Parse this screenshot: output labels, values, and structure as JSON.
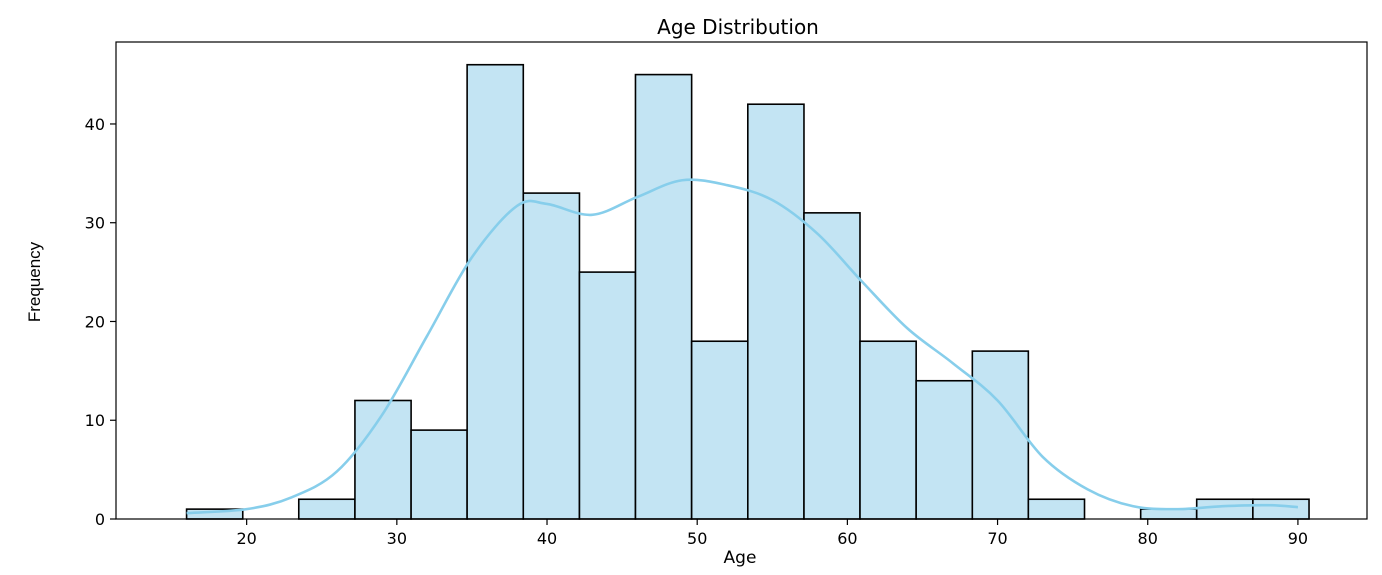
{
  "chart_data": {
    "type": "bar",
    "title": "Age Distribution",
    "xlabel": "Age",
    "ylabel": "Frequency",
    "xlim": [
      11.3,
      94.6
    ],
    "ylim": [
      0,
      48.3
    ],
    "xticks": [
      20,
      30,
      40,
      50,
      60,
      70,
      80,
      90
    ],
    "yticks": [
      0,
      10,
      20,
      30,
      40
    ],
    "bin_edges": [
      16,
      19.74,
      23.47,
      27.21,
      30.95,
      34.68,
      38.42,
      42.16,
      45.89,
      49.63,
      53.37,
      57.11,
      60.84,
      64.58,
      68.32,
      72.05,
      75.79,
      79.53,
      83.26,
      87,
      90.74
    ],
    "counts": [
      1,
      0,
      2,
      12,
      9,
      46,
      33,
      25,
      45,
      18,
      42,
      31,
      18,
      14,
      17,
      2,
      0,
      1,
      2,
      2
    ],
    "kde": {
      "x": [
        16,
        20,
        23,
        26,
        29,
        32,
        35,
        38,
        40,
        43,
        46,
        49,
        52,
        55,
        58,
        61,
        64,
        67,
        70,
        73,
        76,
        79,
        82,
        85,
        88,
        90
      ],
      "y": [
        0.6,
        1.0,
        2.2,
        4.8,
        10.5,
        18.5,
        26.5,
        31.7,
        31.9,
        30.8,
        32.6,
        34.3,
        33.8,
        32.3,
        28.9,
        24.0,
        19.3,
        15.8,
        12.0,
        6.3,
        3.0,
        1.3,
        1.0,
        1.3,
        1.4,
        1.2
      ]
    },
    "colors": {
      "bar_fill": "#c3e4f3",
      "bar_edge": "#000000",
      "kde_line": "#87ceeb"
    },
    "grid": false,
    "legend": "none"
  }
}
